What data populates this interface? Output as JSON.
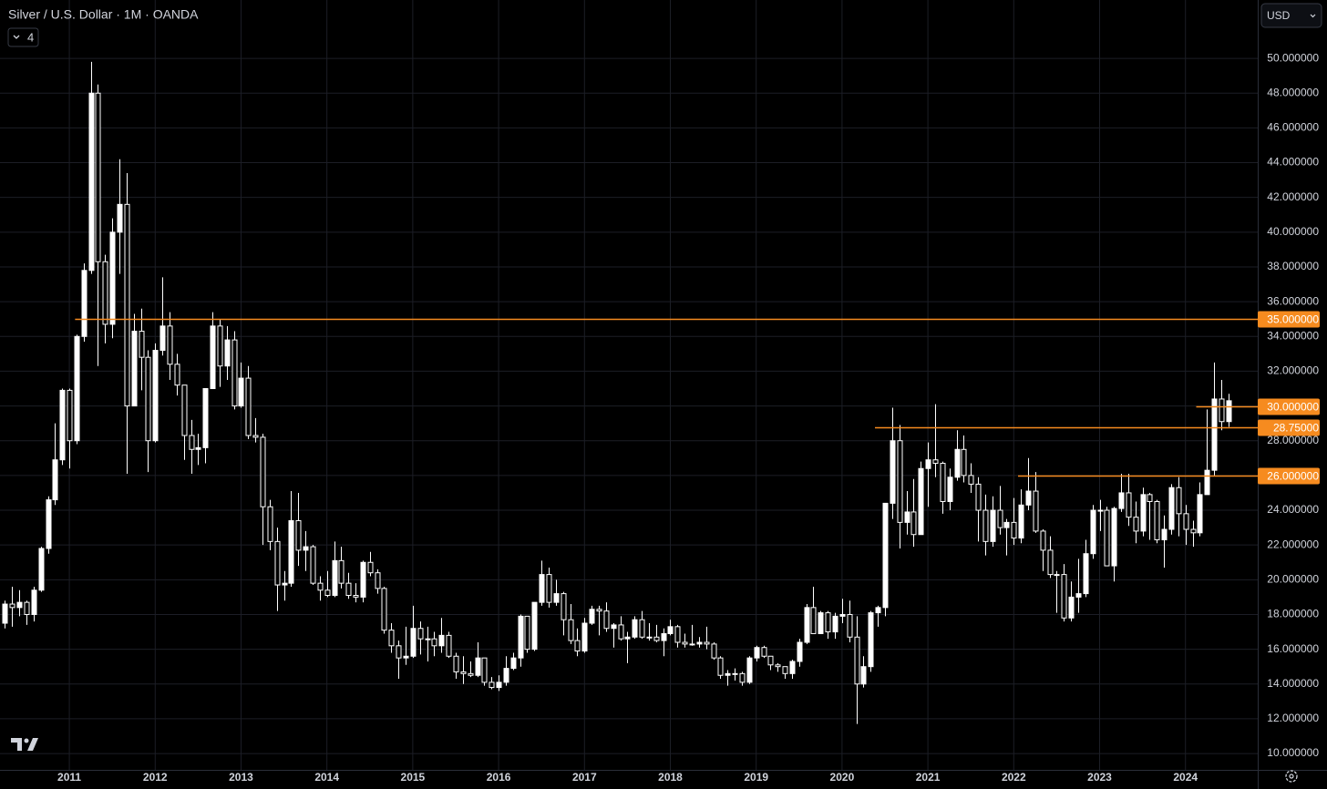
{
  "chart_data": {
    "type": "candlestick",
    "title": "Silver / U.S. Dollar · 1M · OANDA",
    "up_color": "#ffffff",
    "down_color": "#000000",
    "border_color": "#ffffff",
    "level_color": "#f68b1f",
    "grid": true,
    "ylim": [
      9.06,
      53.36
    ],
    "yticks": [
      {
        "value": 10,
        "label": "10.000000"
      },
      {
        "value": 12,
        "label": "12.000000"
      },
      {
        "value": 14,
        "label": "14.000000"
      },
      {
        "value": 16,
        "label": "16.000000"
      },
      {
        "value": 18,
        "label": "18.000000"
      },
      {
        "value": 20,
        "label": "20.000000"
      },
      {
        "value": 22,
        "label": "22.000000"
      },
      {
        "value": 24,
        "label": "24.000000"
      },
      {
        "value": 26,
        "label": "26.000000"
      },
      {
        "value": 28,
        "label": "28.000000"
      },
      {
        "value": 30,
        "label": "30.000000"
      },
      {
        "value": 32,
        "label": "32.000000"
      },
      {
        "value": 34,
        "label": "34.000000"
      },
      {
        "value": 36,
        "label": "36.000000"
      },
      {
        "value": 38,
        "label": "38.000000"
      },
      {
        "value": 40,
        "label": "40.000000"
      },
      {
        "value": 42,
        "label": "42.000000"
      },
      {
        "value": 44,
        "label": "44.000000"
      },
      {
        "value": 46,
        "label": "46.000000"
      },
      {
        "value": 48,
        "label": "48.000000"
      },
      {
        "value": 50,
        "label": "50.000000"
      }
    ],
    "xlim": [
      -0.69,
      175.1
    ],
    "xticks": [
      {
        "value": 9,
        "label": "2011"
      },
      {
        "value": 21,
        "label": "2012"
      },
      {
        "value": 33,
        "label": "2013"
      },
      {
        "value": 45,
        "label": "2014"
      },
      {
        "value": 57,
        "label": "2015"
      },
      {
        "value": 69,
        "label": "2016"
      },
      {
        "value": 81,
        "label": "2017"
      },
      {
        "value": 93,
        "label": "2018"
      },
      {
        "value": 105,
        "label": "2019"
      },
      {
        "value": 117,
        "label": "2020"
      },
      {
        "value": 129,
        "label": "2021"
      },
      {
        "value": 141,
        "label": "2022"
      },
      {
        "value": 153,
        "label": "2023"
      },
      {
        "value": 165,
        "label": "2024"
      }
    ],
    "levels": [
      {
        "value": 35,
        "label": "35.000000",
        "start": 9.8
      },
      {
        "value": 30,
        "label": "30.000000",
        "start": 166.5
      },
      {
        "value": 28.75,
        "label": "28.75000",
        "start": 121.6
      },
      {
        "value": 26,
        "label": "26.000000",
        "start": 141.6
      }
    ],
    "ohlc": [
      [
        17.5,
        18.8,
        17.2,
        18.6
      ],
      [
        18.6,
        19.6,
        17.3,
        18.4
      ],
      [
        18.4,
        19.4,
        17.9,
        18.7
      ],
      [
        18.7,
        18.8,
        17.4,
        18.0
      ],
      [
        18.0,
        19.6,
        17.6,
        19.4
      ],
      [
        19.4,
        21.9,
        19.3,
        21.8
      ],
      [
        21.8,
        24.8,
        21.5,
        24.6
      ],
      [
        24.6,
        29.0,
        24.3,
        26.9
      ],
      [
        26.9,
        31.0,
        26.6,
        30.9
      ],
      [
        30.9,
        31.0,
        26.4,
        28.0
      ],
      [
        28.0,
        34.1,
        27.8,
        34.0
      ],
      [
        34.0,
        38.2,
        33.7,
        37.8
      ],
      [
        37.8,
        49.8,
        37.6,
        48.0
      ],
      [
        48.0,
        48.5,
        32.3,
        38.3
      ],
      [
        38.3,
        38.7,
        33.6,
        34.7
      ],
      [
        34.7,
        40.8,
        33.9,
        40.0
      ],
      [
        40.0,
        44.2,
        37.6,
        41.6
      ],
      [
        41.6,
        43.4,
        26.1,
        30.0
      ],
      [
        30.0,
        35.3,
        30.0,
        34.3
      ],
      [
        34.3,
        35.6,
        30.9,
        32.8
      ],
      [
        32.8,
        33.2,
        26.2,
        28.0
      ],
      [
        28.0,
        33.6,
        27.9,
        33.2
      ],
      [
        33.2,
        37.4,
        32.9,
        34.6
      ],
      [
        34.6,
        35.4,
        31.5,
        32.4
      ],
      [
        32.4,
        33.0,
        30.6,
        31.2
      ],
      [
        31.2,
        31.2,
        26.9,
        28.3
      ],
      [
        28.3,
        29.2,
        26.1,
        27.5
      ],
      [
        27.5,
        28.4,
        26.6,
        27.6
      ],
      [
        27.6,
        31.0,
        26.7,
        31.0
      ],
      [
        31.0,
        35.4,
        31.0,
        34.6
      ],
      [
        34.6,
        35.0,
        31.1,
        32.3
      ],
      [
        32.3,
        34.6,
        31.5,
        33.8
      ],
      [
        33.8,
        34.3,
        29.8,
        30.0
      ],
      [
        30.0,
        32.5,
        29.9,
        31.6
      ],
      [
        31.6,
        32.3,
        28.1,
        28.3
      ],
      [
        28.3,
        29.3,
        27.9,
        28.2
      ],
      [
        28.2,
        28.4,
        22.0,
        24.2
      ],
      [
        24.2,
        24.6,
        21.7,
        22.2
      ],
      [
        22.2,
        23.0,
        18.2,
        19.7
      ],
      [
        19.7,
        20.5,
        18.8,
        19.8
      ],
      [
        19.8,
        25.1,
        19.6,
        23.4
      ],
      [
        23.4,
        25.0,
        20.8,
        21.7
      ],
      [
        21.7,
        22.8,
        20.5,
        21.9
      ],
      [
        21.9,
        22.0,
        19.7,
        19.8
      ],
      [
        19.8,
        20.2,
        18.8,
        19.4
      ],
      [
        19.4,
        20.5,
        19.0,
        19.1
      ],
      [
        19.1,
        22.2,
        19.0,
        21.1
      ],
      [
        21.1,
        21.9,
        19.5,
        19.8
      ],
      [
        19.8,
        20.4,
        18.9,
        19.1
      ],
      [
        19.1,
        19.8,
        18.7,
        19.0
      ],
      [
        19.0,
        21.1,
        18.7,
        21.0
      ],
      [
        21.0,
        21.6,
        20.2,
        20.4
      ],
      [
        20.4,
        20.6,
        19.2,
        19.5
      ],
      [
        19.5,
        19.6,
        16.9,
        17.1
      ],
      [
        17.1,
        17.5,
        15.8,
        16.2
      ],
      [
        16.2,
        16.5,
        14.3,
        15.5
      ],
      [
        15.5,
        17.3,
        15.1,
        15.6
      ],
      [
        15.6,
        18.5,
        15.5,
        17.2
      ],
      [
        17.2,
        17.6,
        15.7,
        16.6
      ],
      [
        16.6,
        17.3,
        15.3,
        16.6
      ],
      [
        16.6,
        17.0,
        15.6,
        16.2
      ],
      [
        16.2,
        17.8,
        15.8,
        16.8
      ],
      [
        16.8,
        17.0,
        15.5,
        15.6
      ],
      [
        15.6,
        15.8,
        14.3,
        14.7
      ],
      [
        14.7,
        15.6,
        14.0,
        14.6
      ],
      [
        14.6,
        15.3,
        14.4,
        14.5
      ],
      [
        14.5,
        16.4,
        14.4,
        15.5
      ],
      [
        15.5,
        15.5,
        13.9,
        14.1
      ],
      [
        14.1,
        14.4,
        13.7,
        13.8
      ],
      [
        13.8,
        14.5,
        13.6,
        14.1
      ],
      [
        14.1,
        15.6,
        13.9,
        14.9
      ],
      [
        14.9,
        15.8,
        14.8,
        15.5
      ],
      [
        15.5,
        18.0,
        15.0,
        17.9
      ],
      [
        17.9,
        17.9,
        15.8,
        16.0
      ],
      [
        16.0,
        18.7,
        15.9,
        18.7
      ],
      [
        18.7,
        21.1,
        18.5,
        20.3
      ],
      [
        20.3,
        20.7,
        18.4,
        18.7
      ],
      [
        18.7,
        20.0,
        18.5,
        19.2
      ],
      [
        19.2,
        19.3,
        16.8,
        17.7
      ],
      [
        17.7,
        18.6,
        16.3,
        16.5
      ],
      [
        16.5,
        17.2,
        15.6,
        15.9
      ],
      [
        15.9,
        17.8,
        15.8,
        17.5
      ],
      [
        17.5,
        18.5,
        17.4,
        18.3
      ],
      [
        18.3,
        18.5,
        16.8,
        18.2
      ],
      [
        18.2,
        18.7,
        17.0,
        17.2
      ],
      [
        17.2,
        17.5,
        16.1,
        17.4
      ],
      [
        17.4,
        17.9,
        16.5,
        16.6
      ],
      [
        16.6,
        17.0,
        15.2,
        16.7
      ],
      [
        16.7,
        17.9,
        16.6,
        17.7
      ],
      [
        17.7,
        18.2,
        16.6,
        16.7
      ],
      [
        16.7,
        17.5,
        16.5,
        16.7
      ],
      [
        16.7,
        17.4,
        16.4,
        16.5
      ],
      [
        16.5,
        17.2,
        15.6,
        16.9
      ],
      [
        16.9,
        17.7,
        16.8,
        17.3
      ],
      [
        17.3,
        17.4,
        16.1,
        16.4
      ],
      [
        16.4,
        16.9,
        16.1,
        16.3
      ],
      [
        16.3,
        17.4,
        16.2,
        16.3
      ],
      [
        16.3,
        16.7,
        16.1,
        16.4
      ],
      [
        16.4,
        17.3,
        16.0,
        16.3
      ],
      [
        16.3,
        16.4,
        15.4,
        15.5
      ],
      [
        15.5,
        15.6,
        14.3,
        14.5
      ],
      [
        14.5,
        14.8,
        13.9,
        14.6
      ],
      [
        14.6,
        14.9,
        14.2,
        14.6
      ],
      [
        14.6,
        14.7,
        13.9,
        14.1
      ],
      [
        14.1,
        15.6,
        14.0,
        15.5
      ],
      [
        15.5,
        16.2,
        15.3,
        16.1
      ],
      [
        16.1,
        16.2,
        15.5,
        15.6
      ],
      [
        15.6,
        15.6,
        14.8,
        15.1
      ],
      [
        15.1,
        15.2,
        14.7,
        15.0
      ],
      [
        15.0,
        15.0,
        14.3,
        14.6
      ],
      [
        14.6,
        15.4,
        14.3,
        15.3
      ],
      [
        15.3,
        16.6,
        15.0,
        16.4
      ],
      [
        16.4,
        18.6,
        16.3,
        18.4
      ],
      [
        18.4,
        19.6,
        16.9,
        16.9
      ],
      [
        16.9,
        18.2,
        16.9,
        18.1
      ],
      [
        18.1,
        18.2,
        16.6,
        17.0
      ],
      [
        17.0,
        18.1,
        16.6,
        17.9
      ],
      [
        17.9,
        18.9,
        17.5,
        18.0
      ],
      [
        18.0,
        18.8,
        16.4,
        16.7
      ],
      [
        16.7,
        17.9,
        11.7,
        14.0
      ],
      [
        14.0,
        15.6,
        13.8,
        15.0
      ],
      [
        15.0,
        18.2,
        14.7,
        18.1
      ],
      [
        18.1,
        18.5,
        17.3,
        18.4
      ],
      [
        18.4,
        24.4,
        17.9,
        24.4
      ],
      [
        24.4,
        29.9,
        23.5,
        28.0
      ],
      [
        28.0,
        28.9,
        21.8,
        23.3
      ],
      [
        23.3,
        25.1,
        22.6,
        23.9
      ],
      [
        23.9,
        25.8,
        21.9,
        22.6
      ],
      [
        22.6,
        26.8,
        22.6,
        26.4
      ],
      [
        26.4,
        27.9,
        24.2,
        26.9
      ],
      [
        26.9,
        30.1,
        25.9,
        26.7
      ],
      [
        26.7,
        26.8,
        23.8,
        24.5
      ],
      [
        24.5,
        26.4,
        24.0,
        25.9
      ],
      [
        25.9,
        28.6,
        25.7,
        27.5
      ],
      [
        27.5,
        28.3,
        25.6,
        26.0
      ],
      [
        26.0,
        26.7,
        25.0,
        25.5
      ],
      [
        25.5,
        25.9,
        22.2,
        24.0
      ],
      [
        24.0,
        24.9,
        21.4,
        22.2
      ],
      [
        22.2,
        24.8,
        21.9,
        24.0
      ],
      [
        24.0,
        25.4,
        22.6,
        23.0
      ],
      [
        23.0,
        23.5,
        21.4,
        23.3
      ],
      [
        23.3,
        24.7,
        22.0,
        22.4
      ],
      [
        22.4,
        25.2,
        22.1,
        24.3
      ],
      [
        24.3,
        27.0,
        24.0,
        25.1
      ],
      [
        25.1,
        26.2,
        22.7,
        22.8
      ],
      [
        22.8,
        22.9,
        20.5,
        21.7
      ],
      [
        21.7,
        22.5,
        20.1,
        20.3
      ],
      [
        20.3,
        20.5,
        18.1,
        20.3
      ],
      [
        20.3,
        20.9,
        17.6,
        17.8
      ],
      [
        17.8,
        19.9,
        17.6,
        19.0
      ],
      [
        19.0,
        21.2,
        18.1,
        19.2
      ],
      [
        19.2,
        22.3,
        19.0,
        21.5
      ],
      [
        21.5,
        24.3,
        21.2,
        24.0
      ],
      [
        24.0,
        24.6,
        22.8,
        24.0
      ],
      [
        24.0,
        24.2,
        20.8,
        20.8
      ],
      [
        20.8,
        24.2,
        19.9,
        24.1
      ],
      [
        24.1,
        26.1,
        23.9,
        25.0
      ],
      [
        25.0,
        26.1,
        23.1,
        23.6
      ],
      [
        23.6,
        24.5,
        22.1,
        22.8
      ],
      [
        22.8,
        25.3,
        22.5,
        24.9
      ],
      [
        24.9,
        25.0,
        22.3,
        24.5
      ],
      [
        24.5,
        24.6,
        22.1,
        22.3
      ],
      [
        22.3,
        23.7,
        20.7,
        22.9
      ],
      [
        22.9,
        25.5,
        22.6,
        25.3
      ],
      [
        25.3,
        25.9,
        22.5,
        23.8
      ],
      [
        23.8,
        24.3,
        22.0,
        22.9
      ],
      [
        22.9,
        23.4,
        21.9,
        22.7
      ],
      [
        22.7,
        25.6,
        22.5,
        24.9
      ],
      [
        24.9,
        29.8,
        24.9,
        26.3
      ],
      [
        26.3,
        32.5,
        26.0,
        30.4
      ],
      [
        30.4,
        31.5,
        28.6,
        29.1
      ],
      [
        29.1,
        30.7,
        28.8,
        30.3
      ]
    ]
  },
  "toolbar": {
    "badge": "4",
    "currency": "USD"
  }
}
